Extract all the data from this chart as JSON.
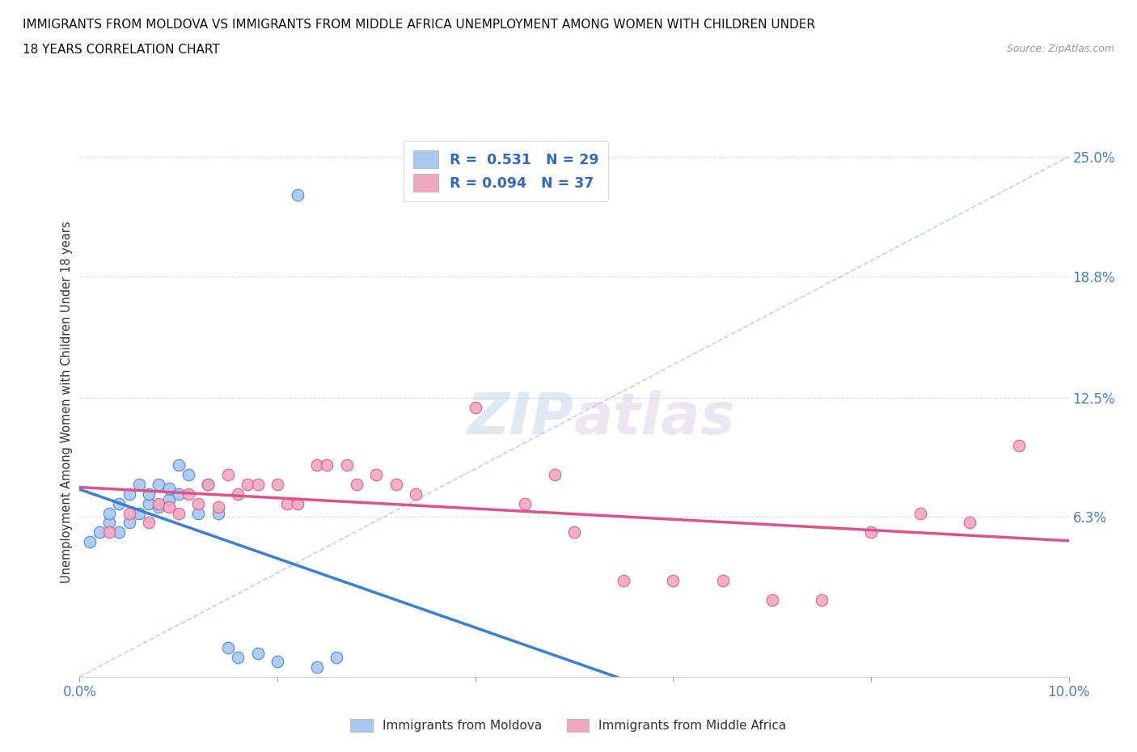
{
  "title_line1": "IMMIGRANTS FROM MOLDOVA VS IMMIGRANTS FROM MIDDLE AFRICA UNEMPLOYMENT AMONG WOMEN WITH CHILDREN UNDER",
  "title_line2": "18 YEARS CORRELATION CHART",
  "source": "Source: ZipAtlas.com",
  "ylabel": "Unemployment Among Women with Children Under 18 years",
  "xlim": [
    0.0,
    0.1
  ],
  "ylim": [
    -0.02,
    0.265
  ],
  "ytick_positions": [
    0.063,
    0.125,
    0.188,
    0.25
  ],
  "ytick_labels": [
    "6.3%",
    "12.5%",
    "18.8%",
    "25.0%"
  ],
  "R_moldova": 0.531,
  "N_moldova": 29,
  "R_middle_africa": 0.094,
  "N_middle_africa": 37,
  "color_moldova": "#a8c8f0",
  "color_middle_africa": "#f0a8c0",
  "line_color_moldova": "#3a7fd5",
  "line_color_middle_africa": "#e0508a",
  "watermark_zip": "ZIP",
  "watermark_atlas": "atlas",
  "moldova_x": [
    0.001,
    0.002,
    0.003,
    0.003,
    0.004,
    0.004,
    0.005,
    0.005,
    0.006,
    0.006,
    0.007,
    0.007,
    0.008,
    0.008,
    0.009,
    0.009,
    0.01,
    0.01,
    0.011,
    0.012,
    0.013,
    0.014,
    0.015,
    0.016,
    0.018,
    0.02,
    0.022,
    0.024,
    0.026
  ],
  "moldova_y": [
    0.05,
    0.055,
    0.06,
    0.065,
    0.055,
    0.07,
    0.06,
    0.075,
    0.065,
    0.08,
    0.07,
    0.075,
    0.068,
    0.08,
    0.072,
    0.078,
    0.075,
    0.09,
    0.085,
    0.065,
    0.08,
    0.065,
    -0.005,
    -0.01,
    -0.008,
    -0.012,
    0.23,
    -0.015,
    -0.01
  ],
  "middle_africa_x": [
    0.003,
    0.005,
    0.007,
    0.008,
    0.009,
    0.01,
    0.011,
    0.012,
    0.013,
    0.014,
    0.015,
    0.016,
    0.017,
    0.018,
    0.02,
    0.021,
    0.022,
    0.024,
    0.025,
    0.027,
    0.028,
    0.03,
    0.032,
    0.034,
    0.04,
    0.045,
    0.048,
    0.05,
    0.055,
    0.06,
    0.065,
    0.07,
    0.075,
    0.08,
    0.085,
    0.09,
    0.095
  ],
  "middle_africa_y": [
    0.055,
    0.065,
    0.06,
    0.07,
    0.068,
    0.065,
    0.075,
    0.07,
    0.08,
    0.068,
    0.085,
    0.075,
    0.08,
    0.08,
    0.08,
    0.07,
    0.07,
    0.09,
    0.09,
    0.09,
    0.08,
    0.085,
    0.08,
    0.075,
    0.12,
    0.07,
    0.085,
    0.055,
    0.03,
    0.03,
    0.03,
    0.02,
    0.02,
    0.055,
    0.065,
    0.06,
    0.1
  ]
}
